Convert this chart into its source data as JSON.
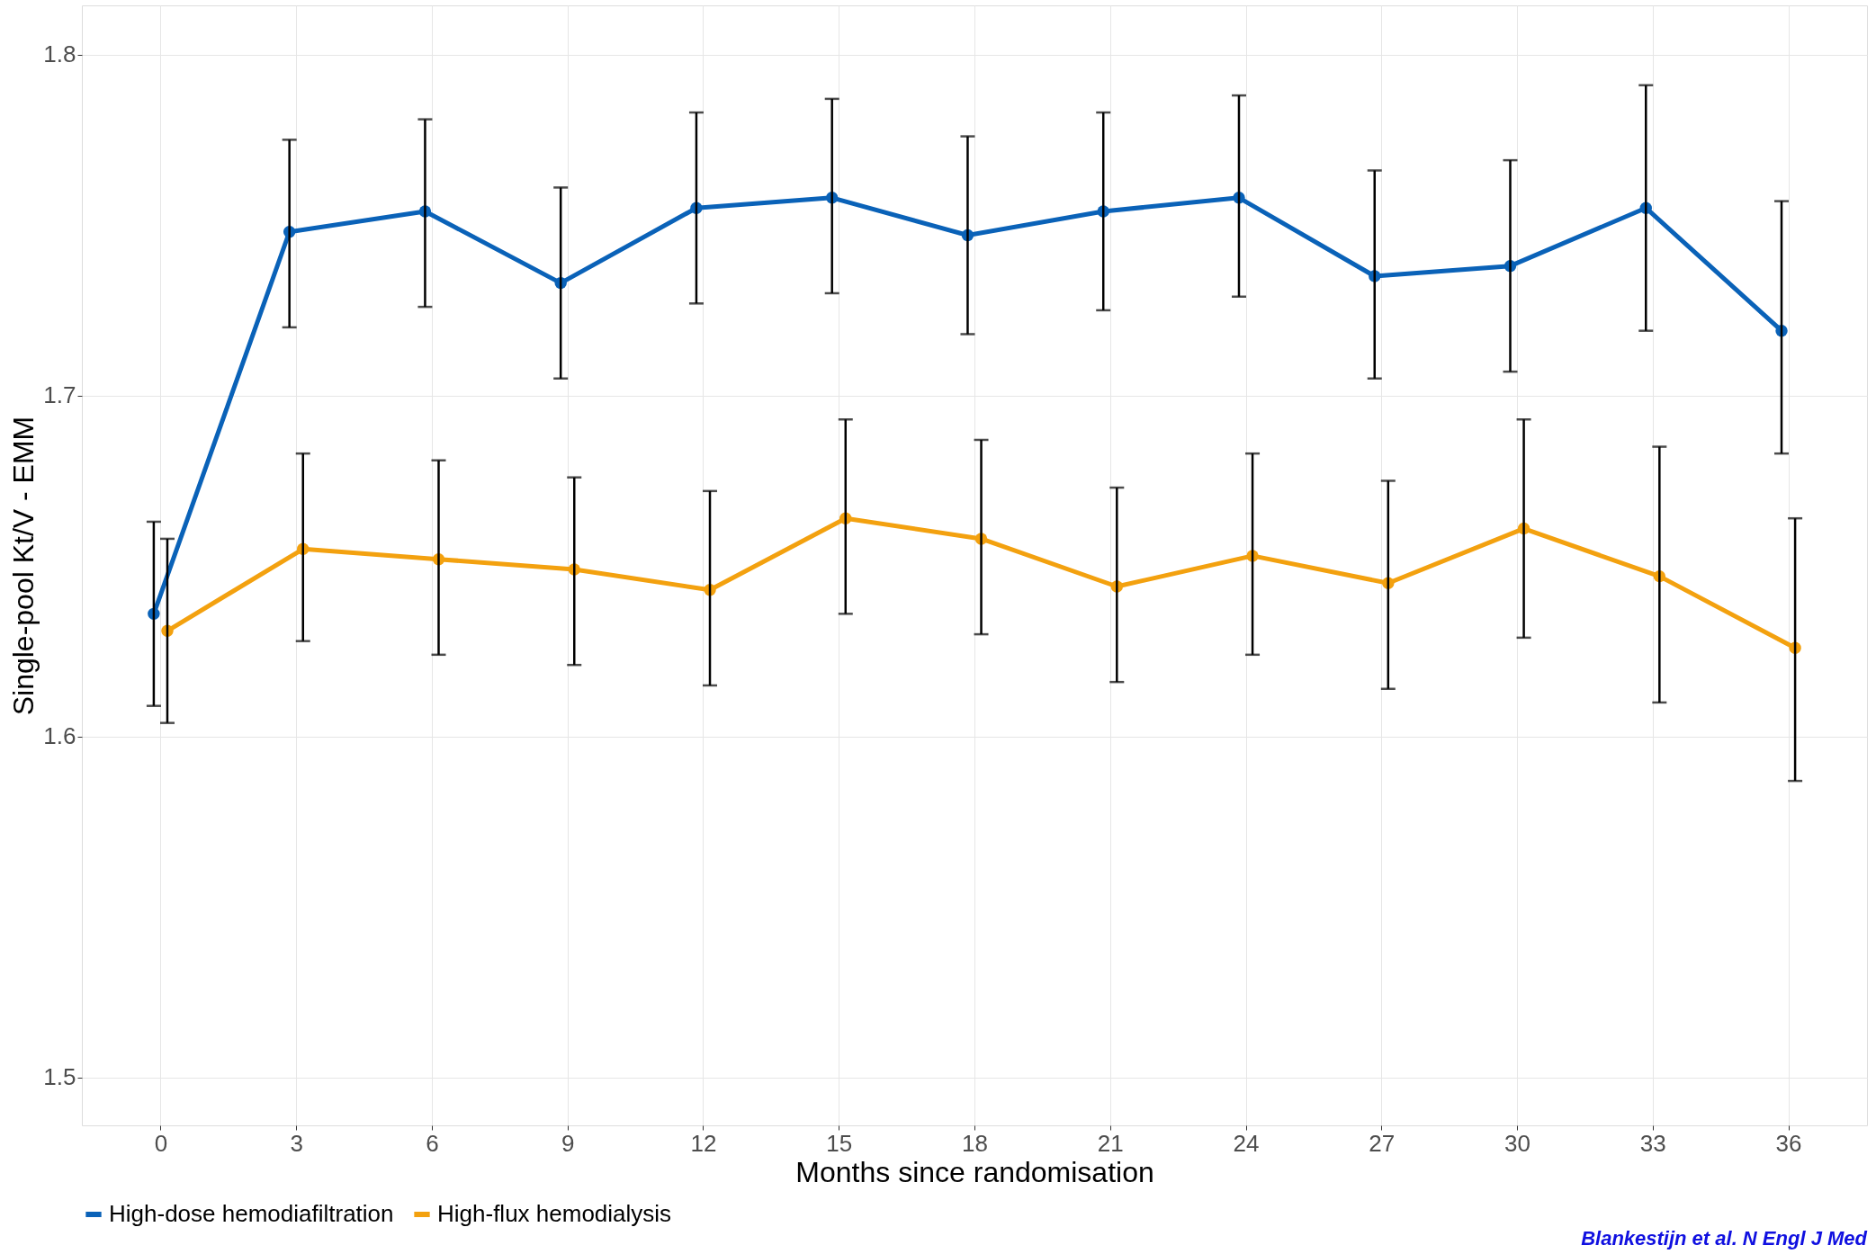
{
  "chart_data": {
    "type": "line",
    "xlabel": "Months since randomisation",
    "ylabel": "Single-pool Kt/V - EMM",
    "xlim": [
      -1.74,
      37.74
    ],
    "xticks": [
      0,
      3,
      6,
      9,
      12,
      15,
      18,
      21,
      24,
      27,
      30,
      33,
      36
    ],
    "ylim": [
      1.486,
      1.8144
    ],
    "yticks": [
      1.5,
      1.6,
      1.7,
      1.8
    ],
    "grid": true,
    "legend": "bottom",
    "marker": "circle",
    "line_style": "solid",
    "annotations": [
      "Blankestijn et al. N Engl J Med"
    ],
    "series": [
      {
        "name": "High-dose hemodiafiltration",
        "color": "#0a62b8",
        "x": [
          -0.15,
          2.85,
          5.85,
          8.85,
          11.85,
          14.85,
          17.85,
          20.85,
          23.85,
          26.85,
          29.85,
          32.85,
          35.85
        ],
        "values": [
          1.636,
          1.748,
          1.754,
          1.733,
          1.755,
          1.758,
          1.747,
          1.754,
          1.758,
          1.735,
          1.738,
          1.755,
          1.719
        ],
        "errors": [
          [
            1.609,
            1.663
          ],
          [
            1.72,
            1.775
          ],
          [
            1.726,
            1.781
          ],
          [
            1.705,
            1.761
          ],
          [
            1.727,
            1.783
          ],
          [
            1.73,
            1.787
          ],
          [
            1.718,
            1.776
          ],
          [
            1.725,
            1.783
          ],
          [
            1.729,
            1.788
          ],
          [
            1.705,
            1.766
          ],
          [
            1.707,
            1.769
          ],
          [
            1.719,
            1.791
          ],
          [
            1.683,
            1.757
          ]
        ]
      },
      {
        "name": "High-flux hemodialysis",
        "color": "#f3a10f",
        "x": [
          0.15,
          3.15,
          6.15,
          9.15,
          12.15,
          15.15,
          18.15,
          21.15,
          24.15,
          27.15,
          30.15,
          33.15,
          36.15
        ],
        "values": [
          1.631,
          1.655,
          1.652,
          1.649,
          1.643,
          1.664,
          1.658,
          1.644,
          1.653,
          1.645,
          1.661,
          1.647,
          1.626
        ],
        "errors": [
          [
            1.604,
            1.658
          ],
          [
            1.628,
            1.683
          ],
          [
            1.624,
            1.681
          ],
          [
            1.621,
            1.676
          ],
          [
            1.615,
            1.672
          ],
          [
            1.636,
            1.693
          ],
          [
            1.63,
            1.687
          ],
          [
            1.616,
            1.673
          ],
          [
            1.624,
            1.683
          ],
          [
            1.614,
            1.675
          ],
          [
            1.629,
            1.693
          ],
          [
            1.61,
            1.685
          ],
          [
            1.587,
            1.664
          ]
        ]
      }
    ]
  }
}
